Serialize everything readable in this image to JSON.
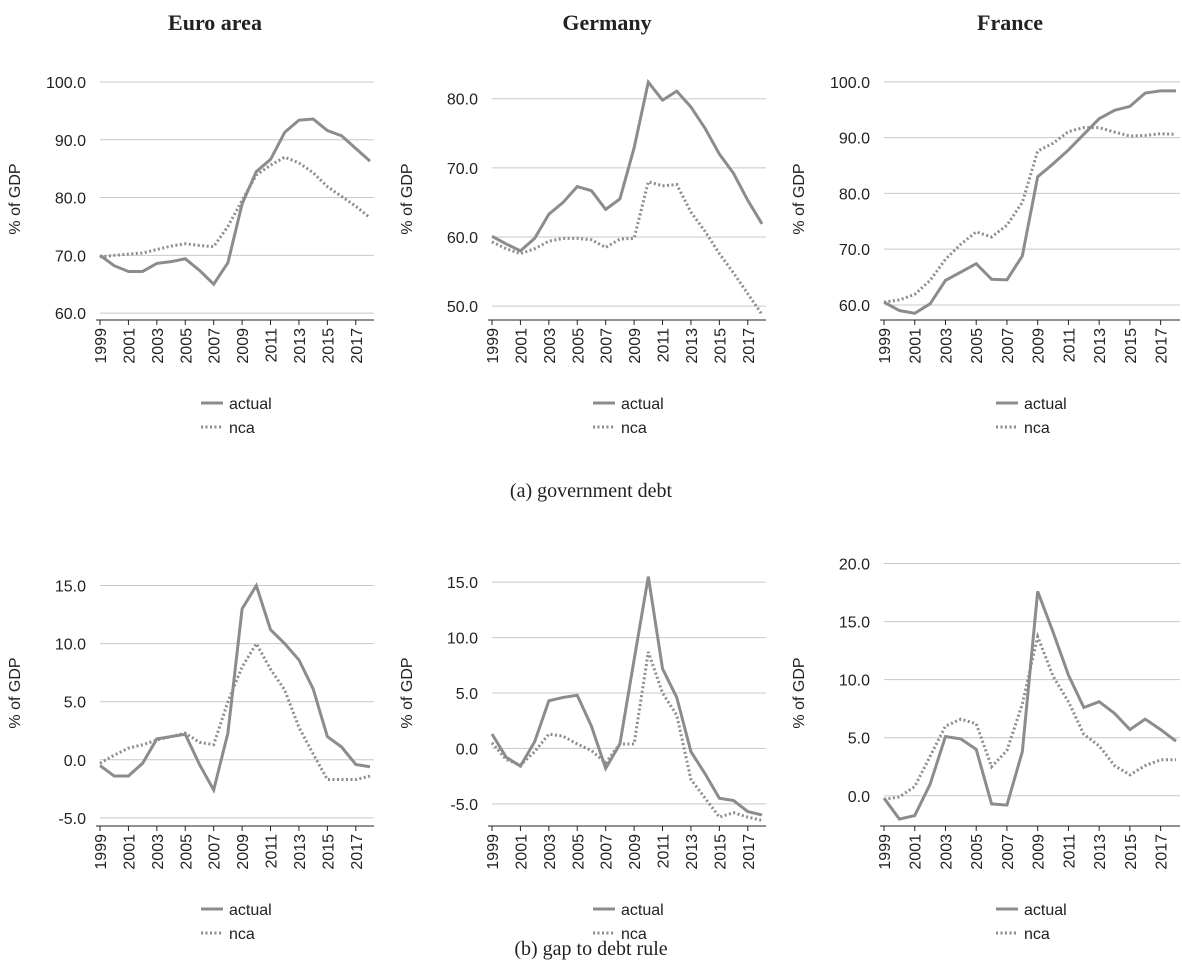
{
  "figure": {
    "captions": [
      "(a) government debt",
      "(b) gap to debt rule"
    ]
  },
  "chart_data": [
    {
      "type": "line",
      "title": "Euro area",
      "ylabel": "% of GDP",
      "x": [
        1999,
        2000,
        2001,
        2002,
        2003,
        2004,
        2005,
        2006,
        2007,
        2008,
        2009,
        2010,
        2011,
        2012,
        2013,
        2014,
        2015,
        2016,
        2017,
        2018
      ],
      "xlim": [
        1999,
        2018
      ],
      "xticks": [
        1999,
        2001,
        2003,
        2005,
        2007,
        2009,
        2011,
        2013,
        2015,
        2017
      ],
      "ylim": [
        58.8,
        100.7
      ],
      "yticks": [
        {
          "value": 60,
          "label": "60.0"
        },
        {
          "value": 70,
          "label": "70.0"
        },
        {
          "value": 80,
          "label": "80.0"
        },
        {
          "value": 90,
          "label": "90.0"
        },
        {
          "value": 100,
          "label": "100.0"
        }
      ],
      "grid": true,
      "legend": "bottom",
      "series": [
        {
          "name": "actual",
          "color": "#8c8c8c",
          "style": "solid",
          "values": [
            70.0,
            68.2,
            67.2,
            67.2,
            68.6,
            68.9,
            69.4,
            67.4,
            65.0,
            68.7,
            78.9,
            84.5,
            86.6,
            91.3,
            93.4,
            93.6,
            91.6,
            90.7,
            88.5,
            86.3
          ]
        },
        {
          "name": "nca",
          "color": "#8c8c8c",
          "style": "dotted",
          "values": [
            69.7,
            70.0,
            70.2,
            70.4,
            71.0,
            71.6,
            72.0,
            71.7,
            71.5,
            75.0,
            79.5,
            83.9,
            85.6,
            87.0,
            86.0,
            84.3,
            81.9,
            80.2,
            78.5,
            76.5
          ]
        }
      ]
    },
    {
      "type": "line",
      "title": "Germany",
      "ylabel": "% of GDP",
      "x": [
        1999,
        2000,
        2001,
        2002,
        2003,
        2004,
        2005,
        2006,
        2007,
        2008,
        2009,
        2010,
        2011,
        2012,
        2013,
        2014,
        2015,
        2016,
        2017,
        2018
      ],
      "xlim": [
        1999,
        2018
      ],
      "xticks": [
        1999,
        2001,
        2003,
        2005,
        2007,
        2009,
        2011,
        2013,
        2015,
        2017
      ],
      "ylim": [
        48,
        83
      ],
      "yticks": [
        {
          "value": 50,
          "label": "50.0"
        },
        {
          "value": 60,
          "label": "60.0"
        },
        {
          "value": 70,
          "label": "70.0"
        },
        {
          "value": 80,
          "label": "80.0"
        }
      ],
      "grid": true,
      "legend": "bottom",
      "series": [
        {
          "name": "actual",
          "color": "#8c8c8c",
          "style": "solid",
          "values": [
            60.1,
            59.0,
            58.0,
            59.8,
            63.3,
            65.0,
            67.3,
            66.7,
            64.0,
            65.5,
            72.9,
            82.4,
            79.8,
            81.1,
            78.8,
            75.7,
            72.0,
            69.2,
            65.3,
            61.9
          ]
        },
        {
          "name": "nca",
          "color": "#8c8c8c",
          "style": "dotted",
          "values": [
            59.3,
            58.3,
            57.6,
            58.3,
            59.4,
            59.8,
            59.8,
            59.6,
            58.5,
            59.7,
            59.8,
            68.0,
            67.4,
            67.6,
            63.6,
            60.8,
            57.6,
            54.8,
            51.8,
            48.8
          ]
        }
      ]
    },
    {
      "type": "line",
      "title": "France",
      "ylabel": "% of GDP",
      "x": [
        1999,
        2000,
        2001,
        2002,
        2003,
        2004,
        2005,
        2006,
        2007,
        2008,
        2009,
        2010,
        2011,
        2012,
        2013,
        2014,
        2015,
        2016,
        2017,
        2018
      ],
      "xlim": [
        1999,
        2018
      ],
      "xticks": [
        1999,
        2001,
        2003,
        2005,
        2007,
        2009,
        2011,
        2013,
        2015,
        2017
      ],
      "ylim": [
        57.3,
        100.7
      ],
      "yticks": [
        {
          "value": 60,
          "label": "60.0"
        },
        {
          "value": 70,
          "label": "70.0"
        },
        {
          "value": 80,
          "label": "80.0"
        },
        {
          "value": 90,
          "label": "90.0"
        },
        {
          "value": 100,
          "label": "100.0"
        }
      ],
      "grid": true,
      "legend": "bottom",
      "series": [
        {
          "name": "actual",
          "color": "#8c8c8c",
          "style": "solid",
          "values": [
            60.5,
            59.0,
            58.5,
            60.2,
            64.4,
            65.9,
            67.4,
            64.6,
            64.5,
            68.8,
            83.0,
            85.3,
            87.8,
            90.6,
            93.4,
            94.9,
            95.6,
            98.0,
            98.4,
            98.4
          ]
        },
        {
          "name": "nca",
          "color": "#8c8c8c",
          "style": "dotted",
          "values": [
            60.5,
            60.9,
            61.9,
            64.4,
            68.2,
            70.9,
            73.1,
            72.2,
            74.3,
            78.4,
            87.6,
            89.0,
            91.1,
            91.8,
            91.8,
            91.0,
            90.3,
            90.4,
            90.7,
            90.6
          ]
        }
      ]
    },
    {
      "type": "line",
      "ylabel": "% of GDP",
      "x": [
        1999,
        2000,
        2001,
        2002,
        2003,
        2004,
        2005,
        2006,
        2007,
        2008,
        2009,
        2010,
        2011,
        2012,
        2013,
        2014,
        2015,
        2016,
        2017,
        2018
      ],
      "xlim": [
        1999,
        2018
      ],
      "xticks": [
        1999,
        2001,
        2003,
        2005,
        2007,
        2009,
        2011,
        2013,
        2015,
        2017
      ],
      "ylim": [
        -5.7,
        17.2
      ],
      "yticks": [
        {
          "value": -5,
          "label": "-5.0"
        },
        {
          "value": 0,
          "label": "0.0"
        },
        {
          "value": 5,
          "label": "5.0"
        },
        {
          "value": 10,
          "label": "10.0"
        },
        {
          "value": 15,
          "label": "15.0"
        }
      ],
      "grid": true,
      "legend": "bottom",
      "series": [
        {
          "name": "actual",
          "color": "#8c8c8c",
          "style": "solid",
          "values": [
            -0.5,
            -1.4,
            -1.4,
            -0.3,
            1.8,
            2.0,
            2.2,
            -0.4,
            -2.6,
            2.3,
            13.0,
            15.0,
            11.2,
            10.0,
            8.6,
            6.1,
            2.0,
            1.1,
            -0.4,
            -0.6
          ]
        },
        {
          "name": "nca",
          "color": "#8c8c8c",
          "style": "dotted",
          "values": [
            -0.3,
            0.4,
            1.0,
            1.3,
            1.7,
            2.0,
            2.3,
            1.5,
            1.3,
            5.0,
            8.0,
            10.0,
            7.8,
            6.0,
            2.8,
            0.5,
            -1.7,
            -1.7,
            -1.7,
            -1.4
          ]
        }
      ]
    },
    {
      "type": "line",
      "ylabel": "% of GDP",
      "x": [
        1999,
        2000,
        2001,
        2002,
        2003,
        2004,
        2005,
        2006,
        2007,
        2008,
        2009,
        2010,
        2011,
        2012,
        2013,
        2014,
        2015,
        2016,
        2017,
        2018
      ],
      "xlim": [
        1999,
        2018
      ],
      "xticks": [
        1999,
        2001,
        2003,
        2005,
        2007,
        2009,
        2011,
        2013,
        2015,
        2017
      ],
      "ylim": [
        -7,
        17
      ],
      "yticks": [
        {
          "value": -5,
          "label": "-5.0"
        },
        {
          "value": 0,
          "label": "0.0"
        },
        {
          "value": 5,
          "label": "5.0"
        },
        {
          "value": 10,
          "label": "10.0"
        },
        {
          "value": 15,
          "label": "15.0"
        }
      ],
      "grid": true,
      "legend": "bottom",
      "series": [
        {
          "name": "actual",
          "color": "#8c8c8c",
          "style": "solid",
          "values": [
            1.3,
            -0.8,
            -1.6,
            0.6,
            4.3,
            4.6,
            4.8,
            2.0,
            -1.8,
            0.4,
            8.0,
            15.5,
            7.2,
            4.6,
            -0.3,
            -2.3,
            -4.5,
            -4.7,
            -5.7,
            -6.0
          ]
        },
        {
          "name": "nca",
          "color": "#8c8c8c",
          "style": "dotted",
          "values": [
            0.5,
            -1.0,
            -1.5,
            -0.3,
            1.3,
            1.1,
            0.4,
            -0.2,
            -1.3,
            0.4,
            0.4,
            8.7,
            5.0,
            3.0,
            -2.8,
            -4.5,
            -6.2,
            -5.8,
            -6.2,
            -6.5
          ]
        }
      ]
    },
    {
      "type": "line",
      "ylabel": "% of GDP",
      "x": [
        1999,
        2000,
        2001,
        2002,
        2003,
        2004,
        2005,
        2006,
        2007,
        2008,
        2009,
        2010,
        2011,
        2012,
        2013,
        2014,
        2015,
        2016,
        2017,
        2018
      ],
      "xlim": [
        1999,
        2018
      ],
      "xticks": [
        1999,
        2001,
        2003,
        2005,
        2007,
        2009,
        2011,
        2013,
        2015,
        2017
      ],
      "ylim": [
        -2.6,
        20.3
      ],
      "yticks": [
        {
          "value": 0,
          "label": "0.0"
        },
        {
          "value": 5,
          "label": "5.0"
        },
        {
          "value": 10,
          "label": "10.0"
        },
        {
          "value": 15,
          "label": "15.0"
        },
        {
          "value": 20,
          "label": "20.0"
        }
      ],
      "grid": true,
      "legend": "bottom",
      "series": [
        {
          "name": "actual",
          "color": "#8c8c8c",
          "style": "solid",
          "values": [
            -0.2,
            -2.0,
            -1.7,
            1.0,
            5.1,
            4.9,
            4.0,
            -0.7,
            -0.8,
            3.8,
            17.6,
            14.1,
            10.4,
            7.6,
            8.1,
            7.1,
            5.7,
            6.6,
            5.7,
            4.7
          ]
        },
        {
          "name": "nca",
          "color": "#8c8c8c",
          "style": "dotted",
          "values": [
            -0.3,
            -0.1,
            0.8,
            3.4,
            6.0,
            6.6,
            6.2,
            2.5,
            3.9,
            7.9,
            13.7,
            10.3,
            8.1,
            5.3,
            4.3,
            2.6,
            1.8,
            2.6,
            3.1,
            3.1
          ]
        }
      ]
    }
  ]
}
